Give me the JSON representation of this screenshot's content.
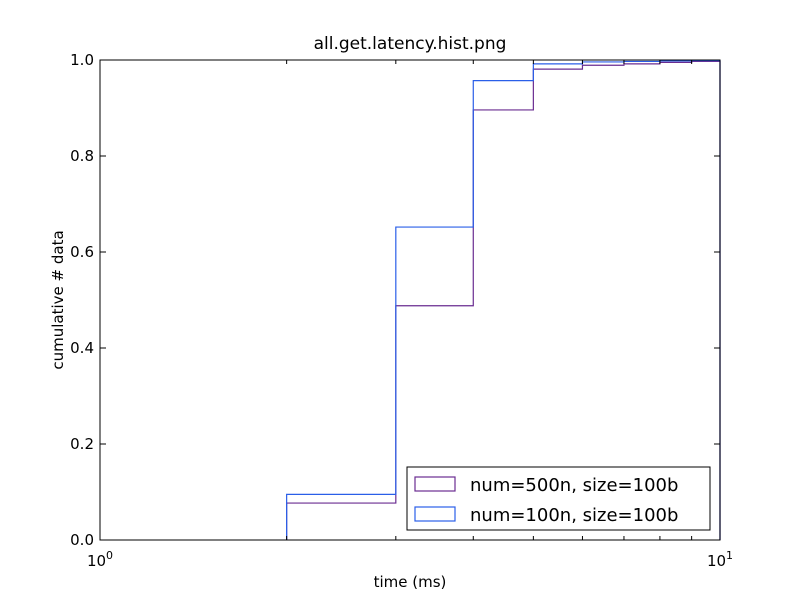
{
  "chart_data": {
    "type": "line",
    "title": "all.get.latency.hist.png",
    "xlabel": "time (ms)",
    "ylabel": "cumulative # data",
    "xscale": "log",
    "xlim": [
      1,
      10
    ],
    "ylim": [
      0,
      1.0
    ],
    "grid": false,
    "legend_position": "lower-right",
    "x_ticks": [
      {
        "value": 1,
        "base": "10",
        "exp": "0"
      },
      {
        "value": 10,
        "base": "10",
        "exp": "1"
      }
    ],
    "y_ticks": [
      "0.0",
      "0.2",
      "0.4",
      "0.6",
      "0.8",
      "1.0"
    ],
    "y_tick_values": [
      0,
      0.2,
      0.4,
      0.6,
      0.8,
      1.0
    ],
    "series": [
      {
        "name": "num=500n, size=100b",
        "color": "#6a2c91",
        "edges": [
          2,
          3,
          4,
          5,
          6,
          7,
          8,
          9,
          10
        ],
        "values": [
          0.077,
          0.488,
          0.896,
          0.981,
          0.989,
          0.992,
          0.995,
          0.997
        ]
      },
      {
        "name": "num=100n, size=100b",
        "color": "#2a5fe8",
        "edges": [
          2,
          3,
          4,
          5,
          6,
          7,
          8,
          9,
          10
        ],
        "values": [
          0.095,
          0.652,
          0.957,
          0.992,
          0.996,
          0.997,
          0.998,
          0.999
        ]
      }
    ]
  }
}
